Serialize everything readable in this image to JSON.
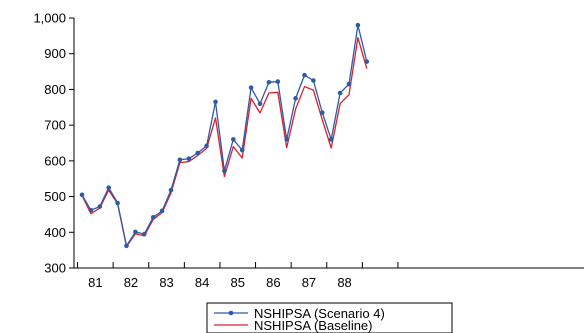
{
  "chart_data": {
    "type": "line",
    "title": "",
    "xlabel": "",
    "ylabel": "",
    "ylim": [
      300,
      1000
    ],
    "yticks": [
      300,
      400,
      500,
      600,
      700,
      800,
      900,
      1000
    ],
    "ytick_labels": [
      "300",
      "400",
      "500",
      "600",
      "700",
      "800",
      "900",
      "1,000"
    ],
    "xticks": [
      "81",
      "82",
      "83",
      "84",
      "85",
      "86",
      "87",
      "88"
    ],
    "x_period": "quarterly",
    "x_start": "1981Q1",
    "grid": false,
    "legend_position": "bottom",
    "series": [
      {
        "name": "NSHIPSA (Scenario 4)",
        "color": "#2e5aa8",
        "marker": "circle",
        "values": [
          505,
          462,
          472,
          525,
          482,
          362,
          401,
          395,
          442,
          460,
          518,
          603,
          606,
          622,
          642,
          765,
          572,
          660,
          630,
          805,
          760,
          820,
          822,
          660,
          775,
          840,
          825,
          735,
          660,
          790,
          815,
          980,
          878
        ]
      },
      {
        "name": "NSHIPSA (Baseline)",
        "color": "#d8202a",
        "marker": "none",
        "values": [
          503,
          452,
          468,
          518,
          480,
          360,
          396,
          390,
          436,
          455,
          510,
          595,
          598,
          615,
          635,
          720,
          556,
          640,
          608,
          775,
          734,
          790,
          792,
          637,
          745,
          808,
          798,
          715,
          636,
          760,
          785,
          945,
          858
        ]
      }
    ]
  }
}
